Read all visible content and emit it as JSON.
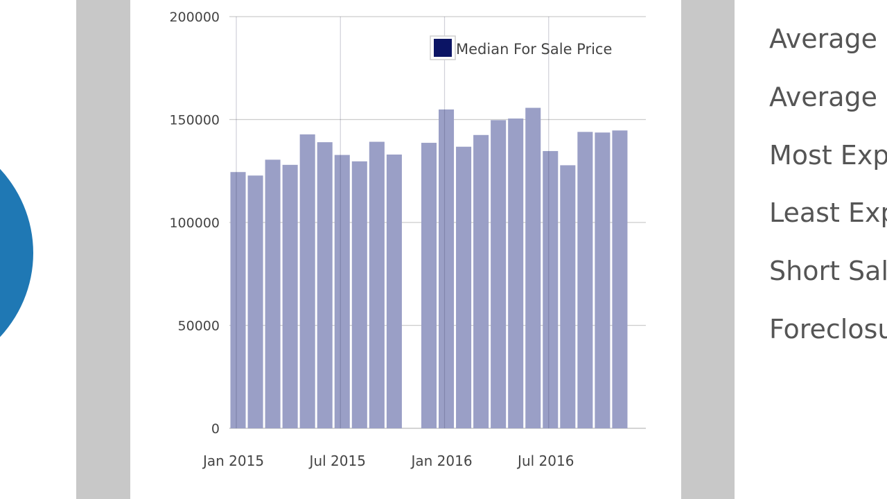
{
  "colors": {
    "bar_fill": "#9a9fc6",
    "legend_swatch": "#0b1464",
    "pie_color": "#1f78b4",
    "gutter": "#c8c8c8"
  },
  "right_panel": {
    "rows": [
      "Average",
      "Average",
      "Most Exp",
      "Least Exp",
      "Short Sal",
      "Foreclosu"
    ]
  },
  "chart_data": {
    "type": "bar",
    "title": "",
    "xlabel": "",
    "ylabel": "",
    "ylim": [
      0,
      200000
    ],
    "yticks": [
      0,
      50000,
      100000,
      150000,
      200000
    ],
    "ytick_labels": [
      "0",
      "50000",
      "100000",
      "150000",
      "200000"
    ],
    "xtick_labels": [
      "Jan 2015",
      "Jul 2015",
      "Jan 2016",
      "Jul 2016"
    ],
    "grid": true,
    "legend_position": "top-right",
    "categories": [
      "2015-01",
      "2015-02",
      "2015-03",
      "2015-04",
      "2015-05",
      "2015-06",
      "2015-07",
      "2015-08",
      "2015-09",
      "2015-10",
      "2015-11",
      "2015-12",
      "2016-01",
      "2016-02",
      "2016-03",
      "2016-04",
      "2016-05",
      "2016-06",
      "2016-07",
      "2016-08",
      "2016-09",
      "2016-10",
      "2016-11",
      "2016-12"
    ],
    "series": [
      {
        "name": "Median For Sale Price",
        "values": [
          124500,
          122800,
          130500,
          128000,
          142800,
          139000,
          132800,
          129700,
          139200,
          133000,
          null,
          138700,
          154900,
          136800,
          142500,
          149700,
          150500,
          155700,
          134700,
          127800,
          144000,
          143700,
          144700,
          null
        ]
      }
    ]
  }
}
